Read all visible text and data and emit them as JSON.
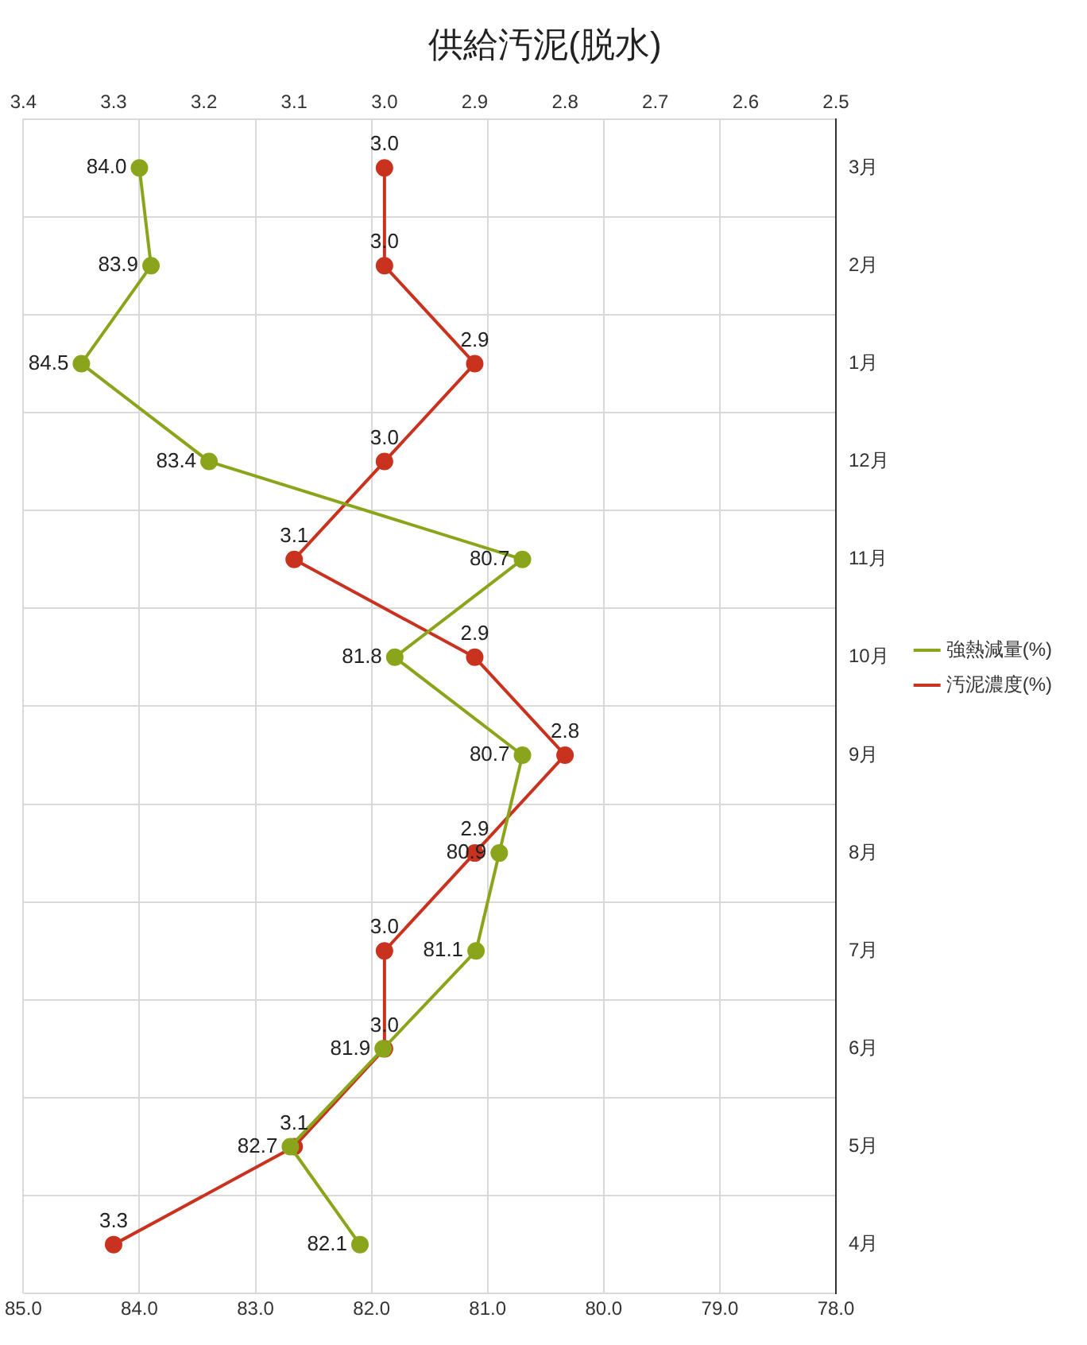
{
  "chart_data": {
    "type": "line",
    "title": "供給汚泥(脱水)",
    "orientation": "horizontal",
    "categories": [
      "3月",
      "2月",
      "1月",
      "12月",
      "11月",
      "10月",
      "9月",
      "8月",
      "7月",
      "6月",
      "5月",
      "4月"
    ],
    "series": [
      {
        "name": "強熱減量(%)",
        "color": "#8aa51b",
        "values": [
          84.0,
          83.9,
          84.5,
          83.4,
          80.7,
          81.8,
          80.7,
          80.9,
          81.1,
          81.9,
          82.7,
          82.1
        ],
        "value_labels": [
          "84.0",
          "83.9",
          "84.5",
          "83.4",
          "80.7",
          "81.8",
          "80.7",
          "80.9",
          "81.1",
          "81.9",
          "82.7",
          "82.1"
        ]
      },
      {
        "name": "汚泥濃度(%)",
        "color": "#c8321e",
        "axis": "x2",
        "values": [
          3.0,
          3.0,
          2.9,
          3.0,
          3.1,
          2.9,
          2.8,
          2.9,
          3.0,
          3.0,
          3.1,
          3.3
        ],
        "value_labels": [
          "3.0",
          "3.0",
          "2.9",
          "3.0",
          "3.1",
          "2.9",
          "2.8",
          "2.9",
          "3.0",
          "3.0",
          "3.1",
          "3.3"
        ]
      }
    ],
    "xlim": [
      85,
      78
    ],
    "xticks": [
      {
        "value": 85,
        "label": "85.0"
      },
      {
        "value": 84,
        "label": "84.0"
      },
      {
        "value": 83,
        "label": "83.0"
      },
      {
        "value": 82,
        "label": "82.0"
      },
      {
        "value": 81,
        "label": "81.0"
      },
      {
        "value": 80,
        "label": "80.0"
      },
      {
        "value": 79,
        "label": "79.0"
      },
      {
        "value": 78,
        "label": "78.0"
      }
    ],
    "x2lim": [
      3.4,
      2.5
    ],
    "x2ticks": [
      3.4,
      3.3,
      3.2,
      3.1,
      {
        "value": 3,
        "label": "3.0"
      },
      2.9,
      2.8,
      2.7,
      2.6,
      2.5
    ],
    "grid": true,
    "legend": "right",
    "marker": "circle",
    "line_style": "solid"
  }
}
